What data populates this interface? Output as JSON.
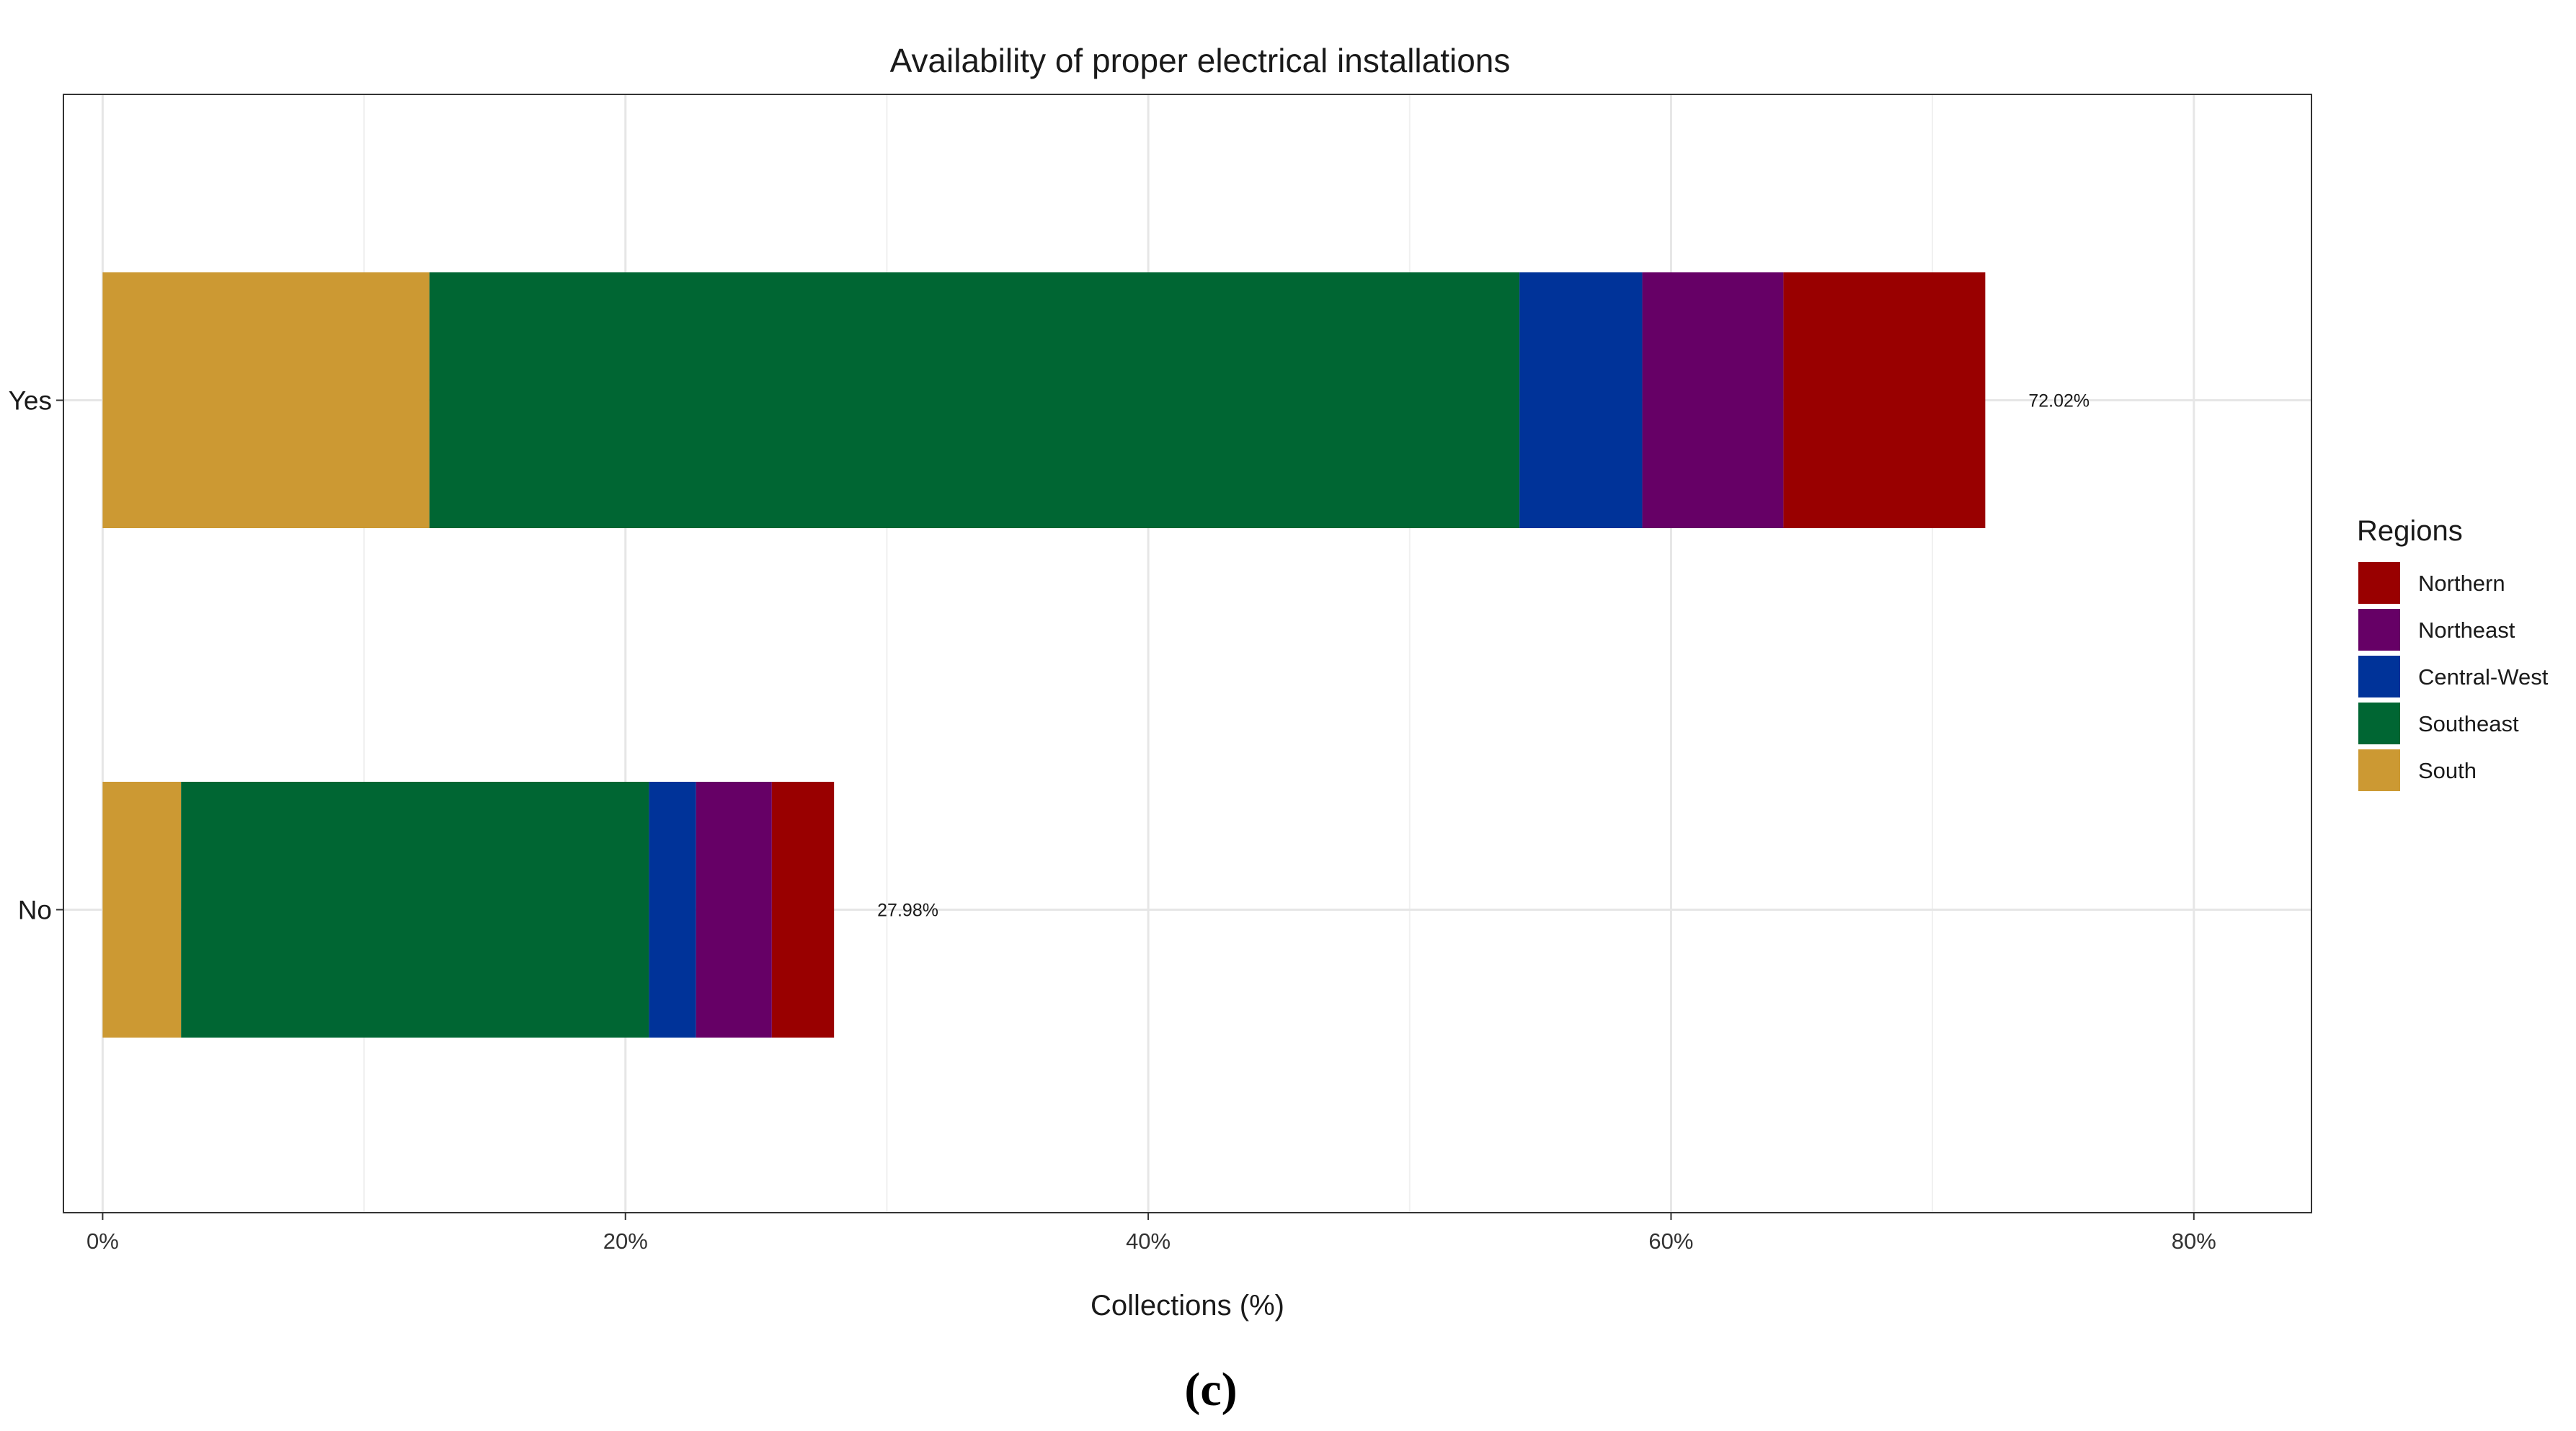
{
  "chart_data": {
    "type": "bar",
    "orientation": "horizontal",
    "stacked": true,
    "title": "Availability of proper electrical installations",
    "xlabel": "Collections (%)",
    "ylabel": "",
    "xlim": [
      -1.5,
      84.5
    ],
    "x_ticks": [
      0,
      20,
      40,
      60,
      80
    ],
    "x_tick_labels": [
      "0%",
      "20%",
      "40%",
      "60%",
      "80%"
    ],
    "grid": true,
    "categories": [
      "Yes",
      "No"
    ],
    "series": [
      {
        "name": "South",
        "color": "#CC9933",
        "values": [
          12.5,
          3.0
        ]
      },
      {
        "name": "Southeast",
        "color": "#006633",
        "values": [
          41.7,
          17.9
        ]
      },
      {
        "name": "Central-West",
        "color": "#003399",
        "values": [
          4.7,
          1.8
        ]
      },
      {
        "name": "Northeast",
        "color": "#660066",
        "values": [
          5.4,
          2.9
        ]
      },
      {
        "name": "Northern",
        "color": "#990000",
        "values": [
          7.72,
          2.38
        ]
      }
    ],
    "totals": [
      72.02,
      27.98
    ],
    "total_labels": [
      "72.02%",
      "27.98%"
    ],
    "legend": {
      "title": "Regions",
      "position": "right",
      "order": [
        "Northern",
        "Northeast",
        "Central-West",
        "Southeast",
        "South"
      ]
    }
  },
  "caption": "(c)"
}
